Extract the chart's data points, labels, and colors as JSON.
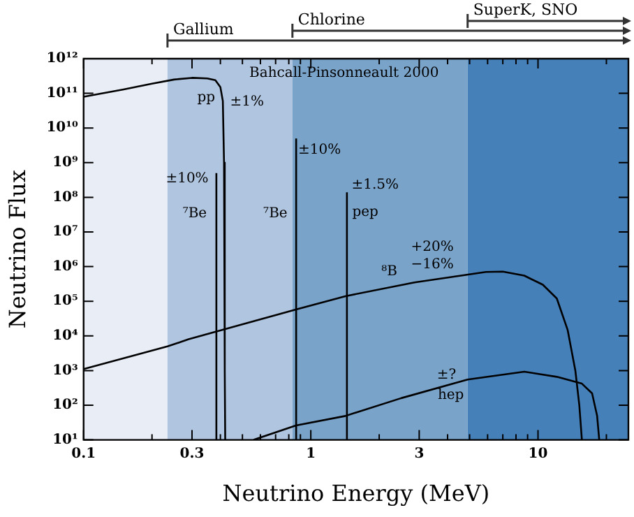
{
  "chart_data": {
    "type": "line",
    "xlabel": "Neutrino Energy (MeV)",
    "ylabel": "Neutrino Flux",
    "log": "xy",
    "legend": false,
    "marker": "none",
    "line_style": "solid",
    "xlim": [
      0.1,
      25
    ],
    "xticks": [
      0.1,
      {
        "value": 0.2,
        "label": null
      },
      0.3,
      {
        "value": 0.4,
        "label": null
      },
      {
        "value": 0.5,
        "label": null
      },
      {
        "value": 0.6,
        "label": null
      },
      {
        "value": 0.7,
        "label": null
      },
      {
        "value": 0.8,
        "label": null
      },
      {
        "value": 0.9,
        "label": null
      },
      1,
      {
        "value": 2,
        "label": null
      },
      3,
      {
        "value": 4,
        "label": null
      },
      {
        "value": 5,
        "label": null
      },
      {
        "value": 6,
        "label": null
      },
      {
        "value": 7,
        "label": null
      },
      {
        "value": 8,
        "label": null
      },
      {
        "value": 9,
        "label": null
      },
      10,
      {
        "value": 20,
        "label": null
      }
    ],
    "ylim": [
      10,
      1000000000000
    ],
    "yticks": [
      {
        "value": 10,
        "label": "10¹"
      },
      {
        "value": 100,
        "label": "10²"
      },
      {
        "value": 1000,
        "label": "10³"
      },
      {
        "value": 10000,
        "label": "10⁴"
      },
      {
        "value": 100000,
        "label": "10⁵"
      },
      {
        "value": 1000000,
        "label": "10⁶"
      },
      {
        "value": 10000000,
        "label": "10⁷"
      },
      {
        "value": 100000000,
        "label": "10⁸"
      },
      {
        "value": 1000000000,
        "label": "10⁹"
      },
      {
        "value": 10000000000,
        "label": "10¹⁰"
      },
      {
        "value": 100000000000,
        "label": "10¹¹"
      },
      {
        "value": 1000000000000,
        "label": "10¹²"
      }
    ],
    "bands": [
      {
        "axis": "x",
        "from": 0.1,
        "to": 0.234,
        "color": "#e8edf6"
      },
      {
        "axis": "x",
        "from": 0.234,
        "to": 0.83,
        "color": "#b0c5df",
        "label": "Gallium"
      },
      {
        "axis": "x",
        "from": 0.83,
        "to": 4.9,
        "color": "#7aa3c9",
        "label": "Chlorine"
      },
      {
        "axis": "x",
        "from": 4.9,
        "to": 25,
        "color": "#4680b8",
        "label": "SuperK, SNO"
      }
    ],
    "series": [
      {
        "name": "pp",
        "color": "#000000",
        "x": [
          0.1,
          0.15,
          0.2,
          0.25,
          0.3,
          0.35,
          0.38,
          0.4,
          0.41,
          0.415,
          0.418,
          0.42
        ],
        "values": [
          80000000000,
          130000000000,
          190000000000,
          250000000000,
          280000000000,
          270000000000,
          240000000000,
          150000000000,
          60000000000,
          1000000000,
          1000,
          10
        ]
      },
      {
        "name": "⁷Be",
        "color": "#000000",
        "x": [
          0.384,
          0.384
        ],
        "values": [
          10,
          500000000
        ]
      },
      {
        "name": "⁷Be",
        "color": "#000000",
        "x": [
          0.862,
          0.862
        ],
        "values": [
          10,
          5000000000
        ]
      },
      {
        "name": "pep",
        "color": "#000000",
        "x": [
          1.442,
          1.442
        ],
        "values": [
          10,
          140000000
        ]
      },
      {
        "name": "⁸B",
        "color": "#000000",
        "x": [
          0.1,
          0.234,
          0.29,
          0.86,
          1.42,
          2.86,
          5.9,
          7,
          8.7,
          10.5,
          12.1,
          13.5,
          14.6,
          15.2,
          15.6
        ],
        "values": [
          1100,
          5000,
          8000,
          58000,
          140000,
          350000,
          700000,
          720000,
          550000,
          300000,
          120000,
          15000,
          1000,
          100,
          10
        ]
      },
      {
        "name": "hep",
        "color": "#000000",
        "x": [
          0.56,
          0.86,
          1.42,
          2.5,
          4.9,
          8.7,
          12.1,
          15.6,
          17.3,
          18.2,
          18.6
        ],
        "values": [
          10,
          26,
          49,
          160,
          550,
          930,
          660,
          420,
          220,
          50,
          10
        ]
      }
    ],
    "annotations": [
      "Bahcall-Pinsonneault 2000",
      "±1%",
      "±10%",
      "±10%",
      "±1.5%",
      "+20%",
      "−16%",
      "±?"
    ]
  }
}
